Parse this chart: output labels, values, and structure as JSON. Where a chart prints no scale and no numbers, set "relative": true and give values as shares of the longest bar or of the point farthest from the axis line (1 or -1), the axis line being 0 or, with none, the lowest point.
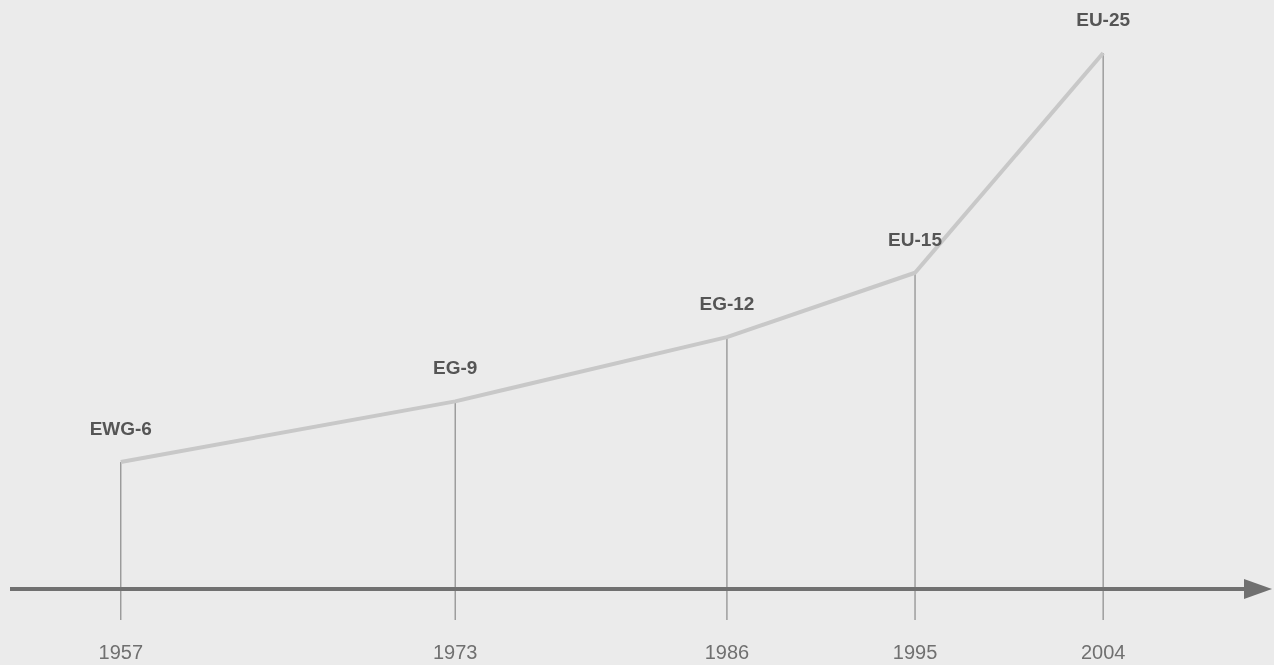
{
  "chart_data": {
    "type": "line",
    "relative": true,
    "x": [
      1957,
      1973,
      1986,
      1995,
      2004
    ],
    "xlim": [
      1951.7,
      2011.6
    ],
    "xticks": [
      1957,
      1973,
      1986,
      1995,
      2004
    ],
    "series": [
      {
        "color": "#c8c8c8",
        "values": [
          0.237,
          0.35,
          0.47,
          0.59,
          1
        ]
      }
    ],
    "annotations": [
      {
        "text": "EWG-6",
        "x": 1957,
        "y": 0.237
      },
      {
        "text": "EG-9",
        "x": 1973,
        "y": 0.35
      },
      {
        "text": "EG-12",
        "x": 1986,
        "y": 0.47
      },
      {
        "text": "EU-15",
        "x": 1995,
        "y": 0.59
      },
      {
        "text": "EU-25",
        "x": 2004,
        "y": 1
      }
    ],
    "grid": "x",
    "marker": "none",
    "line_style": "solid"
  }
}
